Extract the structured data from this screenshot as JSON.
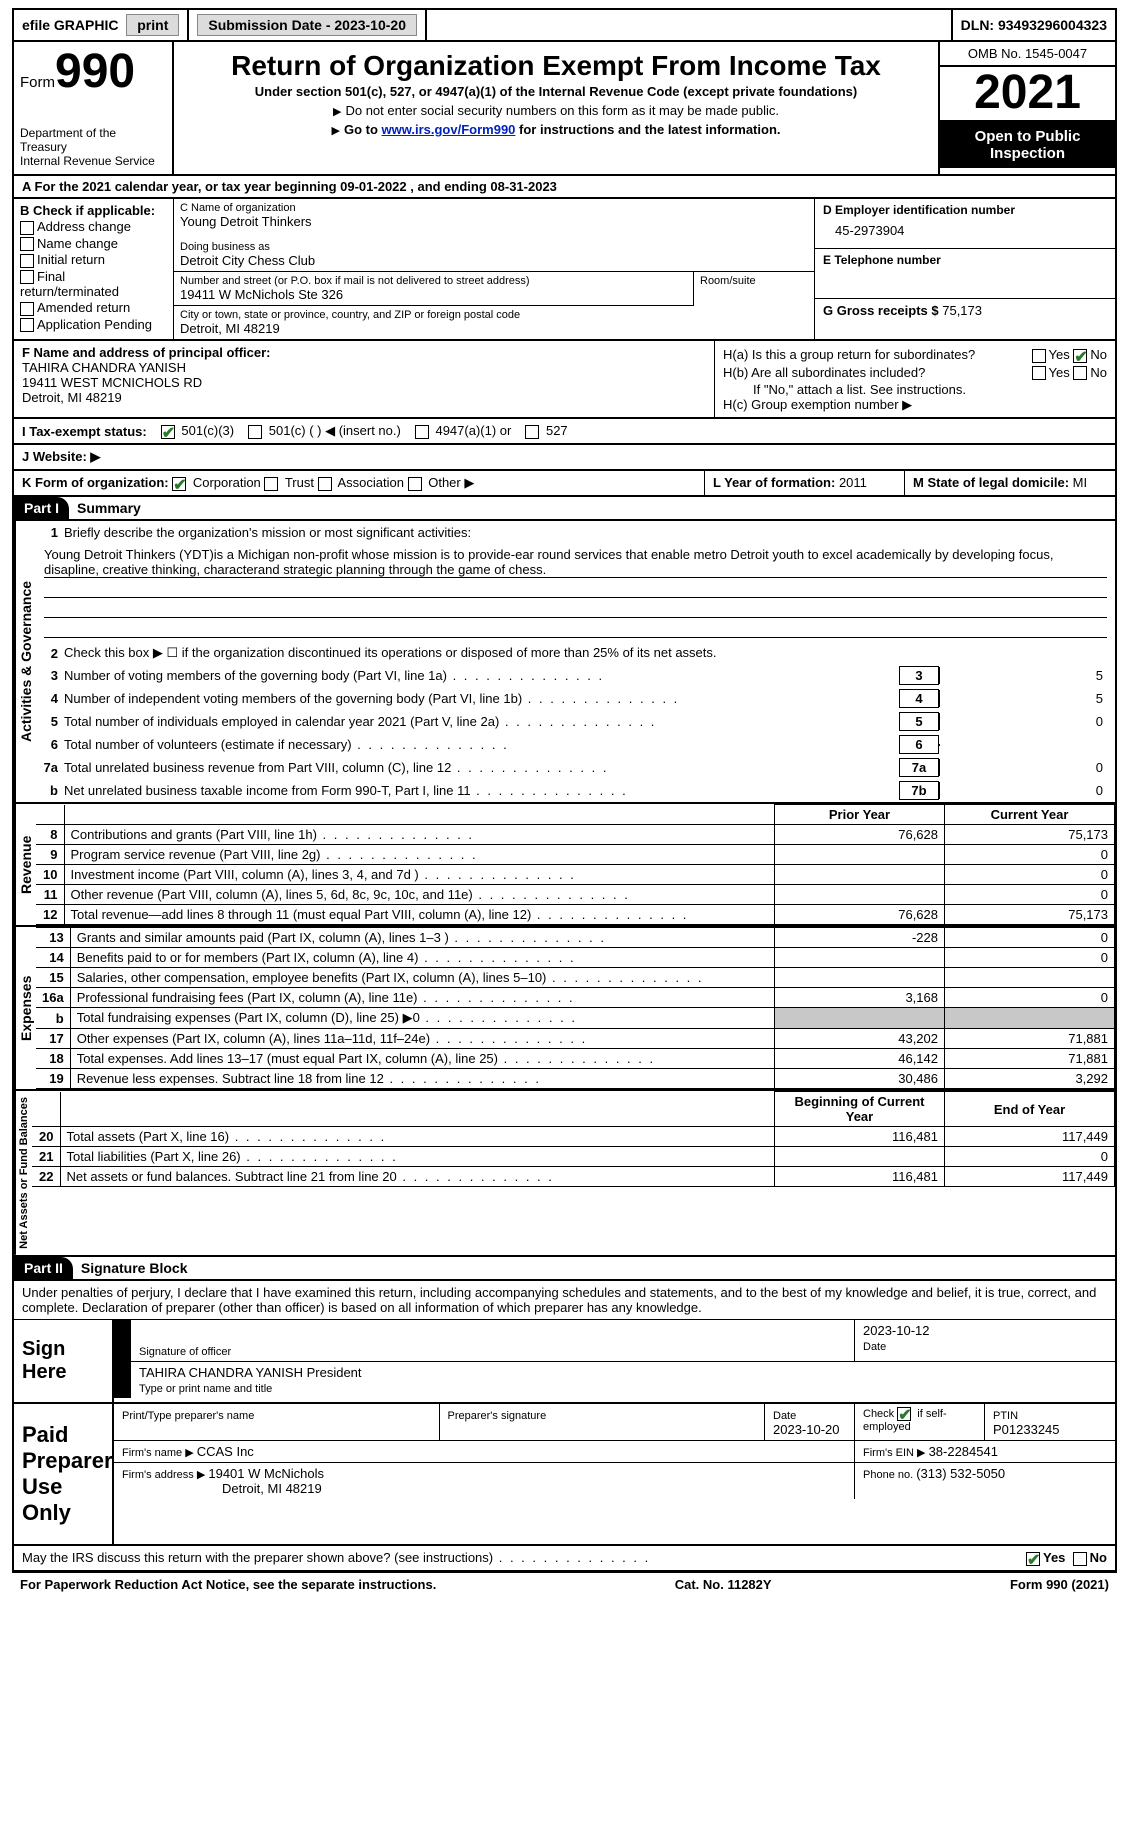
{
  "topbar": {
    "efile_label": "efile GRAPHIC",
    "print_label": "print",
    "submission_label": "Submission Date - 2023-10-20",
    "dln_label": "DLN: 93493296004323"
  },
  "header": {
    "form_word": "Form",
    "form_number": "990",
    "dept": "Department of the Treasury\nInternal Revenue Service",
    "title": "Return of Organization Exempt From Income Tax",
    "subtitle": "Under section 501(c), 527, or 4947(a)(1) of the Internal Revenue Code (except private foundations)",
    "note1": "Do not enter social security numbers on this form as it may be made public.",
    "note2_pre": "Go to ",
    "note2_link": "www.irs.gov/Form990",
    "note2_post": " for instructions and the latest information.",
    "omb": "OMB No. 1545-0047",
    "year": "2021",
    "inspection": "Open to Public Inspection"
  },
  "row_a": "A For the 2021 calendar year, or tax year beginning 09-01-2022   , and ending 08-31-2023",
  "col_b": {
    "header": "B Check if applicable:",
    "opt1": "Address change",
    "opt2": "Name change",
    "opt3": "Initial return",
    "opt4": "Final return/terminated",
    "opt5": "Amended return",
    "opt6": "Application Pending"
  },
  "col_c": {
    "name_lbl": "C Name of organization",
    "name": "Young Detroit Thinkers",
    "dba_lbl": "Doing business as",
    "dba": "Detroit City Chess Club",
    "street_lbl": "Number and street (or P.O. box if mail is not delivered to street address)",
    "street": "19411 W McNichols Ste 326",
    "room_lbl": "Room/suite",
    "city_lbl": "City or town, state or province, country, and ZIP or foreign postal code",
    "city": "Detroit, MI  48219"
  },
  "col_d": {
    "ein_lbl": "D Employer identification number",
    "ein": "45-2973904",
    "phone_lbl": "E Telephone number",
    "gross_lbl": "G Gross receipts $ ",
    "gross": "75,173"
  },
  "col_f": {
    "lbl": "F  Name and address of principal officer:",
    "name": "TAHIRA CHANDRA YANISH",
    "addr1": "19411 WEST MCNICHOLS RD",
    "addr2": "Detroit, MI  48219"
  },
  "col_h": {
    "ha_lbl": "H(a)  Is this a group return for subordinates?",
    "hb_lbl": "H(b)  Are all subordinates included?",
    "hb_note": "If \"No,\" attach a list. See instructions.",
    "hc_lbl": "H(c)  Group exemption number ▶",
    "yes": "Yes",
    "no": "No"
  },
  "row_i": {
    "lbl": "I    Tax-exempt status:",
    "opt1": "501(c)(3)",
    "opt2": "501(c) (   ) ◀ (insert no.)",
    "opt3": "4947(a)(1) or",
    "opt4": "527"
  },
  "row_j": "J   Website: ▶",
  "row_k": {
    "lbl": "K Form of organization:",
    "opt1": "Corporation",
    "opt2": "Trust",
    "opt3": "Association",
    "opt4": "Other ▶"
  },
  "row_l": {
    "lbl": "L Year of formation: ",
    "val": "2011"
  },
  "row_m": {
    "lbl": "M State of legal domicile: ",
    "val": "MI"
  },
  "part1": {
    "label": "Part I",
    "title": "Summary"
  },
  "side": {
    "activities": "Activities & Governance",
    "revenue": "Revenue",
    "expenses": "Expenses",
    "assets": "Net Assets or Fund Balances"
  },
  "summary": {
    "l1_lbl": "Briefly describe the organization's mission or most significant activities:",
    "l1_txt": "Young Detroit Thinkers (YDT)is a Michigan non-profit whose mission is to provide-ear round services that enable metro Detroit youth to excel academically by developing focus, disapline, creative thinking, characterand strategic planning through the game of chess.",
    "l2": "Check this box ▶ ☐  if the organization discontinued its operations or disposed of more than 25% of its net assets.",
    "l3": "Number of voting members of the governing body (Part VI, line 1a)",
    "l3v": "5",
    "l4": "Number of independent voting members of the governing body (Part VI, line 1b)",
    "l4v": "5",
    "l5": "Total number of individuals employed in calendar year 2021 (Part V, line 2a)",
    "l5v": "0",
    "l6": "Total number of volunteers (estimate if necessary)",
    "l6v": "",
    "l7a": "Total unrelated business revenue from Part VIII, column (C), line 12",
    "l7av": "0",
    "l7b": "Net unrelated business taxable income from Form 990-T, Part I, line 11",
    "l7bv": "0"
  },
  "revhdr": {
    "prior": "Prior Year",
    "current": "Current Year"
  },
  "rev": [
    {
      "n": "8",
      "t": "Contributions and grants (Part VIII, line 1h)",
      "p": "76,628",
      "c": "75,173"
    },
    {
      "n": "9",
      "t": "Program service revenue (Part VIII, line 2g)",
      "p": "",
      "c": "0"
    },
    {
      "n": "10",
      "t": "Investment income (Part VIII, column (A), lines 3, 4, and 7d )",
      "p": "",
      "c": "0"
    },
    {
      "n": "11",
      "t": "Other revenue (Part VIII, column (A), lines 5, 6d, 8c, 9c, 10c, and 11e)",
      "p": "",
      "c": "0"
    },
    {
      "n": "12",
      "t": "Total revenue—add lines 8 through 11 (must equal Part VIII, column (A), line 12)",
      "p": "76,628",
      "c": "75,173"
    }
  ],
  "exp": [
    {
      "n": "13",
      "t": "Grants and similar amounts paid (Part IX, column (A), lines 1–3 )",
      "p": "-228",
      "c": "0"
    },
    {
      "n": "14",
      "t": "Benefits paid to or for members (Part IX, column (A), line 4)",
      "p": "",
      "c": "0"
    },
    {
      "n": "15",
      "t": "Salaries, other compensation, employee benefits (Part IX, column (A), lines 5–10)",
      "p": "",
      "c": ""
    },
    {
      "n": "16a",
      "t": "Professional fundraising fees (Part IX, column (A), line 11e)",
      "p": "3,168",
      "c": "0"
    },
    {
      "n": "b",
      "t": "Total fundraising expenses (Part IX, column (D), line 25) ▶0",
      "p": "GREY",
      "c": "GREY"
    },
    {
      "n": "17",
      "t": "Other expenses (Part IX, column (A), lines 11a–11d, 11f–24e)",
      "p": "43,202",
      "c": "71,881"
    },
    {
      "n": "18",
      "t": "Total expenses. Add lines 13–17 (must equal Part IX, column (A), line 25)",
      "p": "46,142",
      "c": "71,881"
    },
    {
      "n": "19",
      "t": "Revenue less expenses. Subtract line 18 from line 12",
      "p": "30,486",
      "c": "3,292"
    }
  ],
  "assethdr": {
    "begin": "Beginning of Current Year",
    "end": "End of Year"
  },
  "assets": [
    {
      "n": "20",
      "t": "Total assets (Part X, line 16)",
      "p": "116,481",
      "c": "117,449"
    },
    {
      "n": "21",
      "t": "Total liabilities (Part X, line 26)",
      "p": "",
      "c": "0"
    },
    {
      "n": "22",
      "t": "Net assets or fund balances. Subtract line 21 from line 20",
      "p": "116,481",
      "c": "117,449"
    }
  ],
  "part2": {
    "label": "Part II",
    "title": "Signature Block"
  },
  "sig": {
    "perjury": "Under penalties of perjury, I declare that I have examined this return, including accompanying schedules and statements, and to the best of my knowledge and belief, it is true, correct, and complete. Declaration of preparer (other than officer) is based on all information of which preparer has any knowledge.",
    "sign_here": "Sign Here",
    "sig_officer": "Signature of officer",
    "date_lbl": "Date",
    "sig_date": "2023-10-12",
    "officer_name": "TAHIRA CHANDRA YANISH  President",
    "type_name": "Type or print name and title",
    "paid": "Paid Preparer Use Only",
    "prep_name_lbl": "Print/Type preparer's name",
    "prep_sig_lbl": "Preparer's signature",
    "prep_date_lbl": "Date",
    "prep_date": "2023-10-20",
    "check_if": "Check ☑ if self-employed",
    "ptin_lbl": "PTIN",
    "ptin": "P01233245",
    "firm_name_lbl": "Firm's name   ▶ ",
    "firm_name": "CCAS Inc",
    "firm_ein_lbl": "Firm's EIN ▶ ",
    "firm_ein": "38-2284541",
    "firm_addr_lbl": "Firm's address ▶ ",
    "firm_addr": "19401 W McNichols",
    "firm_addr2": "Detroit, MI  48219",
    "firm_phone_lbl": "Phone no. ",
    "firm_phone": "(313) 532-5050"
  },
  "discuss": {
    "q": "May the IRS discuss this return with the preparer shown above? (see instructions)",
    "yes": "Yes",
    "no": "No"
  },
  "footer": {
    "left": "For Paperwork Reduction Act Notice, see the separate instructions.",
    "mid": "Cat. No. 11282Y",
    "right": "Form 990 (2021)"
  }
}
